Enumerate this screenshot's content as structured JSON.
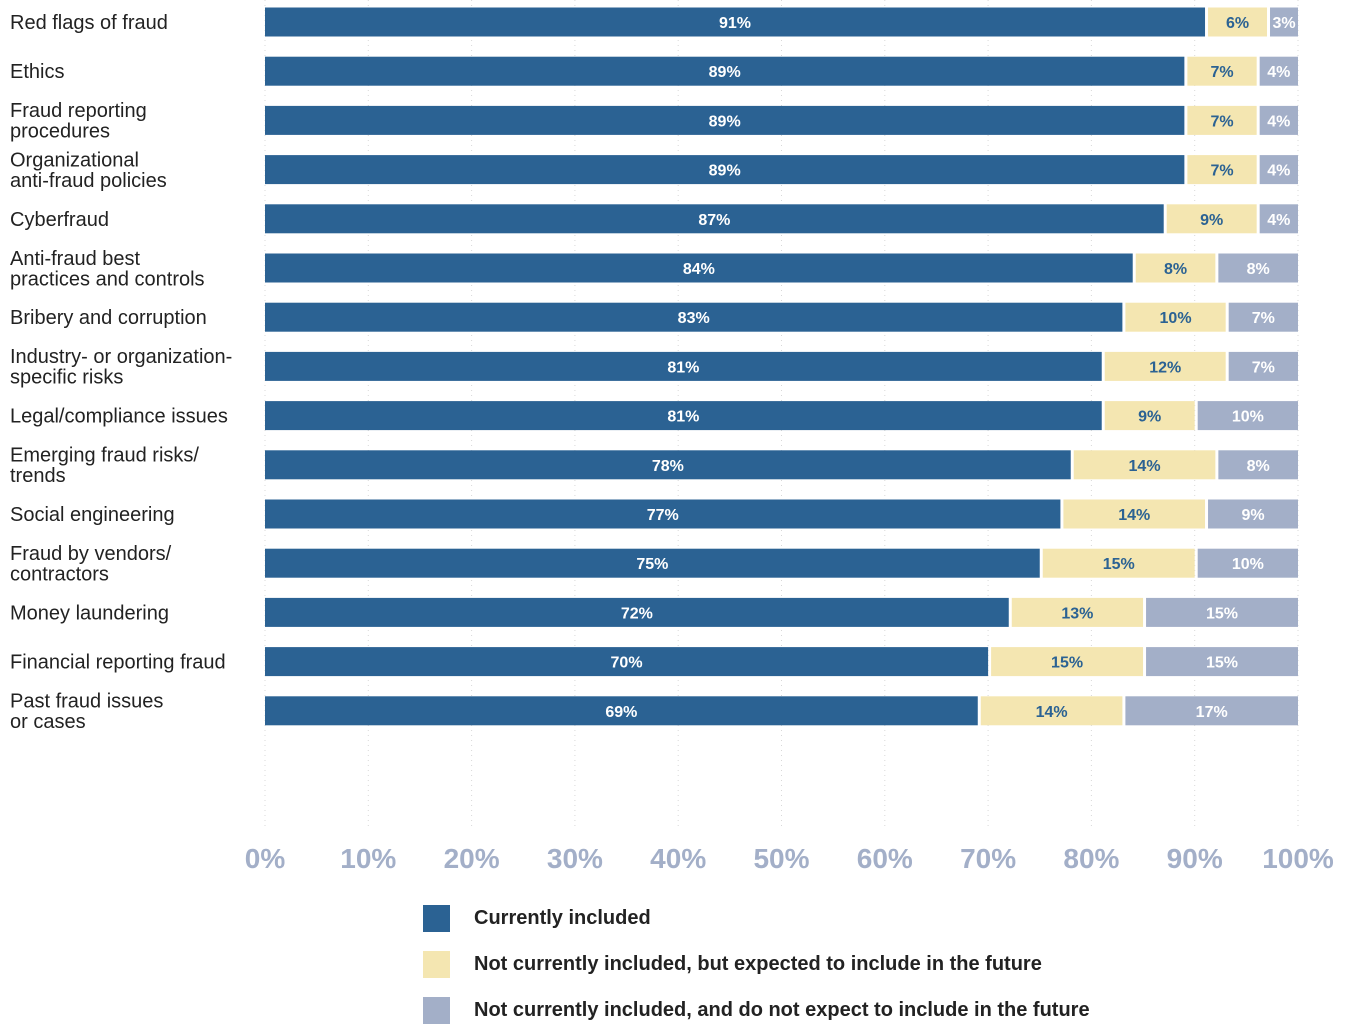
{
  "chart_data": {
    "type": "bar",
    "orientation": "horizontal",
    "stacked": true,
    "categories": [
      "Red flags of fraud",
      "Ethics",
      "Fraud reporting procedures",
      "Organizational anti-fraud policies",
      "Cyberfraud",
      "Anti-fraud best practices and controls",
      "Bribery and corruption",
      "Industry- or organization- specific risks",
      "Legal/compliance issues",
      "Emerging fraud risks/ trends",
      "Social engineering",
      "Fraud by vendors/ contractors",
      "Money laundering",
      "Financial reporting fraud",
      "Past fraud issues or cases"
    ],
    "category_lines": [
      [
        "Red flags of fraud"
      ],
      [
        "Ethics"
      ],
      [
        "Fraud reporting",
        "procedures"
      ],
      [
        "Organizational",
        "anti-fraud policies"
      ],
      [
        "Cyberfraud"
      ],
      [
        "Anti-fraud best",
        "practices and controls"
      ],
      [
        "Bribery and corruption"
      ],
      [
        "Industry- or organization-",
        "specific risks"
      ],
      [
        "Legal/compliance issues"
      ],
      [
        "Emerging fraud risks/",
        "trends"
      ],
      [
        "Social engineering"
      ],
      [
        "Fraud by vendors/",
        "contractors"
      ],
      [
        "Money laundering"
      ],
      [
        "Financial reporting fraud"
      ],
      [
        "Past fraud issues",
        "or cases"
      ]
    ],
    "series": [
      {
        "name": "Currently included",
        "color": "#2b6293",
        "label_color": "#ffffff",
        "values": [
          91,
          89,
          89,
          89,
          87,
          84,
          83,
          81,
          81,
          78,
          77,
          75,
          72,
          70,
          69
        ]
      },
      {
        "name": "Not currently included, but expected to include in the future",
        "color": "#f4e6b1",
        "label_color": "#2b6293",
        "values": [
          6,
          7,
          7,
          7,
          9,
          8,
          10,
          12,
          9,
          14,
          14,
          15,
          13,
          15,
          14
        ]
      },
      {
        "name": "Not currently included, and do not expect to include in the future",
        "color": "#a3afc8",
        "label_color": "#ffffff",
        "values": [
          3,
          4,
          4,
          4,
          4,
          8,
          7,
          7,
          10,
          8,
          9,
          10,
          15,
          15,
          17
        ]
      }
    ],
    "value_suffix": "%",
    "xlim": [
      0,
      100
    ],
    "x_ticks": [
      0,
      10,
      20,
      30,
      40,
      50,
      60,
      70,
      80,
      90,
      100
    ],
    "x_tick_labels": [
      "0%",
      "10%",
      "20%",
      "30%",
      "40%",
      "50%",
      "60%",
      "70%",
      "80%",
      "90%",
      "100%"
    ],
    "grid": true,
    "legend_position": "bottom"
  }
}
